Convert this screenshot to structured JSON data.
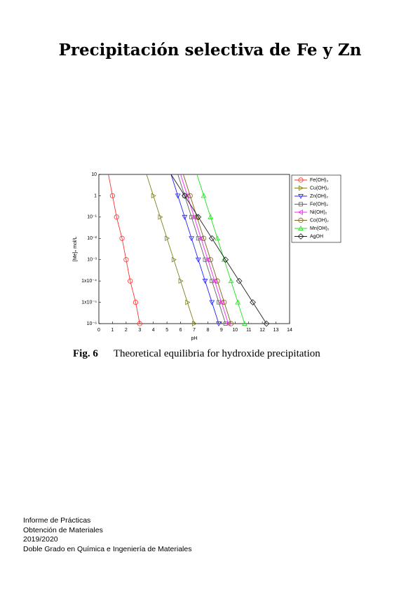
{
  "header": {
    "title": "Precipitación selectiva de Fe y Zn"
  },
  "chart_data": {
    "type": "line",
    "log_y": true,
    "xlabel": "pH",
    "ylabel": "[Me]ₙ mol/L",
    "xlim": [
      0,
      14
    ],
    "xticks": [
      0,
      1,
      2,
      3,
      4,
      5,
      6,
      7,
      8,
      9,
      10,
      11,
      12,
      13,
      14
    ],
    "ylim": [
      1e-06,
      10
    ],
    "yticks": [
      10,
      1,
      {
        "value": 0.1,
        "label": "10⁻¹"
      },
      {
        "value": 0.01,
        "label": "10⁻²"
      },
      {
        "value": 0.001,
        "label": "10⁻³"
      },
      {
        "value": 0.0001,
        "label": "1x10⁻⁴"
      },
      {
        "value": 1e-05,
        "label": "1x10⁻⁵"
      },
      {
        "value": 1e-06,
        "label": "10⁻⁶"
      }
    ],
    "legend": "outside-right",
    "series": [
      {
        "name": "Fe(OH)₃",
        "color": "#ff3030",
        "marker": "circle",
        "x": [
          0.7,
          1,
          1.3,
          1.7,
          2,
          2.3,
          2.7,
          3
        ],
        "values": [
          10,
          1,
          0.1,
          0.01,
          0.001,
          0.0001,
          1e-05,
          1e-06
        ]
      },
      {
        "name": "Cu(OH)₂",
        "color": "#808020",
        "marker": "triangle-right",
        "x": [
          3.5,
          4,
          4.5,
          5,
          5.5,
          6,
          6.5,
          7
        ],
        "values": [
          10,
          1,
          0.1,
          0.01,
          0.001,
          0.0001,
          1e-05,
          1e-06
        ]
      },
      {
        "name": "Zn(OH)₂",
        "color": "#2020ff",
        "marker": "triangle-down",
        "x": [
          5.3,
          5.8,
          6.3,
          6.8,
          7.3,
          7.8,
          8.3,
          8.8
        ],
        "values": [
          10,
          1,
          0.1,
          0.01,
          0.001,
          0.0001,
          1e-05,
          1e-06
        ]
      },
      {
        "name": "Fe(OH)₂",
        "color": "#606060",
        "marker": "square",
        "x": [
          5.8,
          6.3,
          6.8,
          7.3,
          7.8,
          8.3,
          8.8,
          9.3
        ],
        "values": [
          10,
          1,
          0.1,
          0.01,
          0.001,
          0.0001,
          1e-05,
          1e-06
        ]
      },
      {
        "name": "Ni(OH)₂",
        "color": "#ff20ff",
        "marker": "triangle-left",
        "x": [
          6,
          6.5,
          7,
          7.5,
          8,
          8.5,
          9,
          9.5
        ],
        "values": [
          10,
          1,
          0.1,
          0.01,
          0.001,
          0.0001,
          1e-05,
          1e-06
        ]
      },
      {
        "name": "Co(OH)₂",
        "color": "#806020",
        "marker": "circle",
        "x": [
          6.2,
          6.7,
          7.2,
          7.7,
          8.2,
          8.7,
          9.2,
          9.7
        ],
        "values": [
          10,
          1,
          0.1,
          0.01,
          0.001,
          0.0001,
          1e-05,
          1e-06
        ]
      },
      {
        "name": "Mn(OH)₂",
        "color": "#20e020",
        "marker": "triangle-up",
        "x": [
          7.2,
          7.7,
          8.2,
          8.7,
          9.2,
          9.7,
          10.2,
          10.7
        ],
        "values": [
          10,
          1,
          0.1,
          0.01,
          0.001,
          0.0001,
          1e-05,
          1e-06
        ]
      },
      {
        "name": "AgOH",
        "color": "#202020",
        "marker": "diamond",
        "x": [
          5.3,
          6.3,
          7.3,
          8.3,
          9.3,
          10.3,
          11.3,
          12.3
        ],
        "values": [
          10,
          1,
          0.1,
          0.01,
          0.001,
          0.0001,
          1e-05,
          1e-06
        ]
      }
    ]
  },
  "caption": {
    "label": "Fig. 6",
    "text": "Theoretical equilibria for hydroxide precipitation"
  },
  "footer": {
    "lines": [
      "Informe de Prácticas",
      "Obtención de Materiales",
      "2019/2020",
      "Doble Grado en Química e Ingeniería de Materiales"
    ]
  }
}
